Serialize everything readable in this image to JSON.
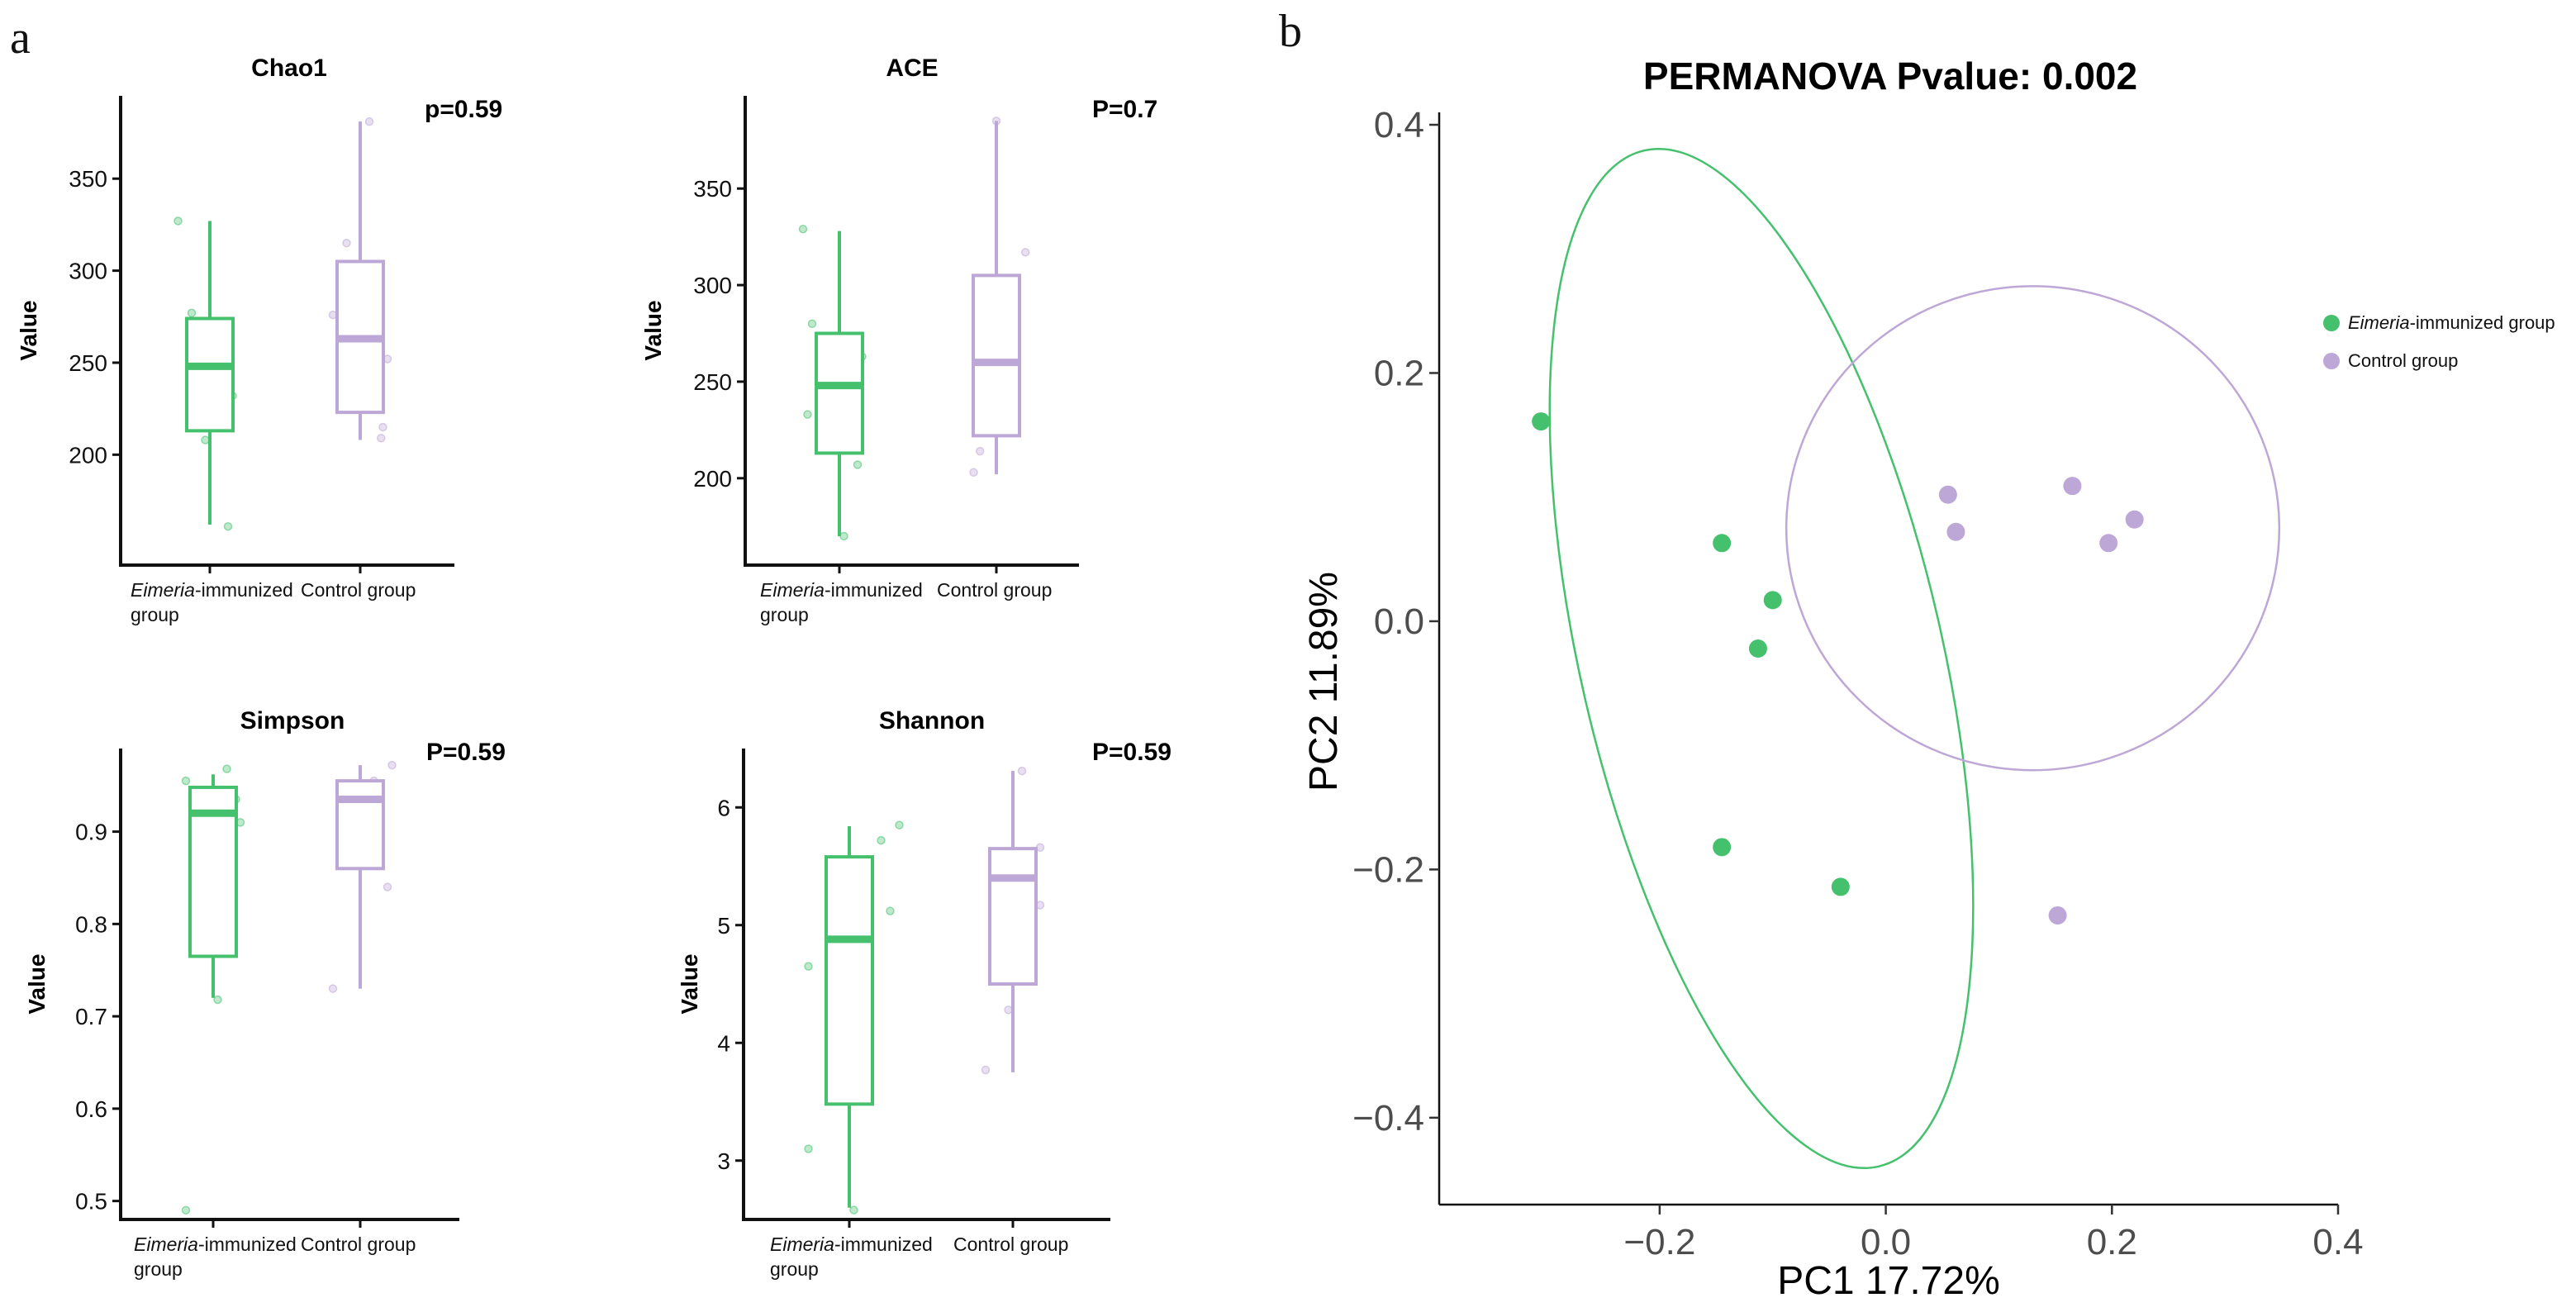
{
  "panel_a_label": "a",
  "panel_b_label": "b",
  "colors": {
    "immunized": "#45c16d",
    "control": "#bda7d6"
  },
  "chart_data": [
    {
      "type": "box",
      "id": "chao1",
      "title": "Chao1",
      "pvalue": "p=0.59",
      "ylabel": "Value",
      "ylim": [
        140,
        395
      ],
      "yticks": [
        200,
        250,
        300,
        350
      ],
      "ytick_labels": [
        "200",
        "250",
        "300",
        "350"
      ],
      "groups": [
        {
          "label_italic": "Eimeria",
          "label_rest": "-immunized",
          "label_line2": "group",
          "color_key": "immunized",
          "min": 162,
          "q1": 213,
          "median": 248,
          "q3": 274,
          "max": 327,
          "points": [
            [
              -0.35,
              327
            ],
            [
              -0.2,
              277
            ],
            [
              -0.05,
              208
            ],
            [
              0.05,
              263
            ],
            [
              0.25,
              232
            ],
            [
              0.2,
              161
            ]
          ]
        },
        {
          "label_plain": "Control group",
          "color_key": "control",
          "min": 208,
          "q1": 223,
          "median": 263,
          "q3": 305,
          "max": 381,
          "points": [
            [
              -0.3,
              276
            ],
            [
              -0.15,
              315
            ],
            [
              0.1,
              381
            ],
            [
              0.3,
              252
            ],
            [
              0.25,
              215
            ],
            [
              0.23,
              209
            ]
          ]
        }
      ]
    },
    {
      "type": "box",
      "id": "ace",
      "title": "ACE",
      "pvalue": "P=0.7",
      "ylabel": "Value",
      "ylim": [
        155,
        398
      ],
      "yticks": [
        200,
        250,
        300,
        350
      ],
      "ytick_labels": [
        "200",
        "250",
        "300",
        "350"
      ],
      "groups": [
        {
          "label_italic": "Eimeria",
          "label_rest": "-immunized",
          "label_line2": "group",
          "color_key": "immunized",
          "min": 170,
          "q1": 213,
          "median": 248,
          "q3": 275,
          "max": 328,
          "points": [
            [
              -0.4,
              329
            ],
            [
              -0.3,
              280
            ],
            [
              -0.35,
              233
            ],
            [
              0.05,
              170
            ],
            [
              0.2,
              207
            ],
            [
              0.25,
              263
            ]
          ]
        },
        {
          "label_plain": "Control group",
          "color_key": "control",
          "min": 202,
          "q1": 222,
          "median": 260,
          "q3": 305,
          "max": 385,
          "points": [
            [
              -0.2,
              274
            ],
            [
              -0.15,
              246
            ],
            [
              -0.18,
              214
            ],
            [
              -0.25,
              203
            ],
            [
              0.0,
              385
            ],
            [
              0.32,
              317
            ]
          ]
        }
      ]
    },
    {
      "type": "box",
      "id": "simpson",
      "title": "Simpson",
      "pvalue": "P=0.59",
      "ylabel": "Value",
      "ylim": [
        0.48,
        0.99
      ],
      "yticks": [
        0.5,
        0.6,
        0.7,
        0.8,
        0.9
      ],
      "ytick_labels": [
        "0.5",
        "0.6",
        "0.7",
        "0.8",
        "0.9"
      ],
      "groups": [
        {
          "label_italic": "Eimeria",
          "label_rest": "-immunized",
          "label_line2": "group",
          "color_key": "immunized",
          "min": 0.72,
          "q1": 0.765,
          "median": 0.92,
          "q3": 0.948,
          "max": 0.962,
          "points": [
            [
              -0.3,
              0.955
            ],
            [
              -0.3,
              0.49
            ],
            [
              0.15,
              0.968
            ],
            [
              0.25,
              0.935
            ],
            [
              0.05,
              0.718
            ],
            [
              0.3,
              0.91
            ]
          ]
        },
        {
          "label_plain": "Control group",
          "color_key": "control",
          "min": 0.73,
          "q1": 0.86,
          "median": 0.935,
          "q3": 0.955,
          "max": 0.972,
          "points": [
            [
              -0.3,
              0.73
            ],
            [
              -0.05,
              0.94
            ],
            [
              0.15,
              0.955
            ],
            [
              0.2,
              0.918
            ],
            [
              0.35,
              0.972
            ],
            [
              0.3,
              0.84
            ]
          ]
        }
      ]
    },
    {
      "type": "box",
      "id": "shannon",
      "title": "Shannon",
      "pvalue": "P=0.59",
      "ylabel": "Value",
      "ylim": [
        2.5,
        6.5
      ],
      "yticks": [
        3,
        4,
        5,
        6
      ],
      "ytick_labels": [
        "3",
        "4",
        "5",
        "6"
      ],
      "groups": [
        {
          "label_italic": "Eimeria",
          "label_rest": "-immunized",
          "label_line2": "group",
          "color_key": "immunized",
          "min": 2.6,
          "q1": 3.48,
          "median": 4.88,
          "q3": 5.58,
          "max": 5.84,
          "points": [
            [
              -0.45,
              4.65
            ],
            [
              -0.45,
              3.1
            ],
            [
              0.05,
              2.58
            ],
            [
              0.35,
              5.72
            ],
            [
              0.45,
              5.12
            ],
            [
              0.55,
              5.85
            ]
          ]
        },
        {
          "label_plain": "Control group",
          "color_key": "control",
          "min": 3.75,
          "q1": 4.5,
          "median": 5.4,
          "q3": 5.65,
          "max": 6.31,
          "points": [
            [
              -0.3,
              3.77
            ],
            [
              -0.05,
              4.28
            ],
            [
              0.1,
              6.31
            ],
            [
              0.3,
              5.17
            ],
            [
              0.3,
              5.66
            ],
            [
              0.0,
              5.35
            ]
          ]
        }
      ]
    },
    {
      "type": "scatter",
      "id": "pcoa",
      "title": "PERMANOVA Pvalue: 0.002",
      "xlabel": "PC1 17.72%",
      "ylabel": "PC2 11.89%",
      "xlim": [
        -0.395,
        0.4
      ],
      "ylim": [
        -0.47,
        0.41
      ],
      "xticks": [
        -0.2,
        0.0,
        0.2,
        0.4
      ],
      "xtick_labels": [
        "−0.2",
        "0.0",
        "0.2",
        "0.4"
      ],
      "yticks": [
        -0.4,
        -0.2,
        0.0,
        0.2,
        0.4
      ],
      "ytick_labels": [
        "−0.4",
        "−0.2",
        "0.0",
        "0.2",
        "0.4"
      ],
      "legend": [
        {
          "italic": "Eimeria",
          "rest": "-immunized group",
          "color_key": "immunized"
        },
        {
          "italic": "",
          "rest": "Control group",
          "color_key": "control"
        }
      ],
      "series": [
        {
          "name": "Eimeria-immunized group",
          "color_key": "immunized",
          "points": [
            [
              -0.305,
              0.161
            ],
            [
              -0.145,
              0.063
            ],
            [
              -0.1,
              0.017
            ],
            [
              -0.113,
              -0.022
            ],
            [
              -0.145,
              -0.182
            ],
            [
              -0.04,
              -0.214
            ]
          ],
          "ellipse": {
            "cx": -0.11,
            "cy": -0.03,
            "rx": 0.16,
            "ry": 0.42,
            "angle_deg": -13
          }
        },
        {
          "name": "Control group",
          "color_key": "control",
          "points": [
            [
              0.055,
              0.102
            ],
            [
              0.062,
              0.072
            ],
            [
              0.165,
              0.109
            ],
            [
              0.197,
              0.063
            ],
            [
              0.22,
              0.082
            ],
            [
              0.152,
              -0.237
            ]
          ],
          "ellipse": {
            "cx": 0.13,
            "cy": 0.075,
            "rx": 0.218,
            "ry": 0.195,
            "angle_deg": 0
          }
        }
      ]
    }
  ]
}
